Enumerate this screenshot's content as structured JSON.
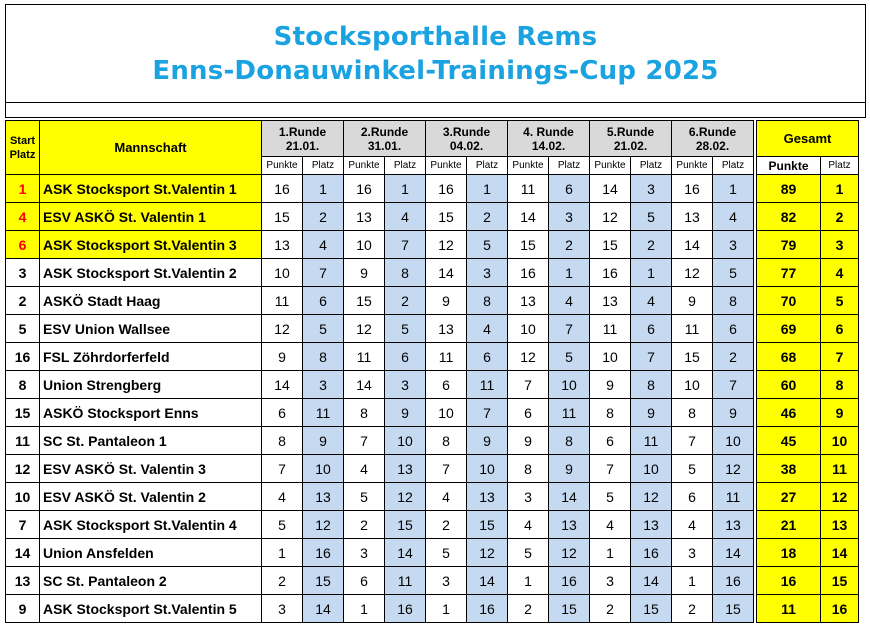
{
  "title": {
    "line1": "Stocksporthalle Rems",
    "line2": "Enns-Donauwinkel-Trainings-Cup  2025"
  },
  "headers": {
    "start_platz_1": "Start",
    "start_platz_2": "Platz",
    "mannschaft": "Mannschaft",
    "gesamt": "Gesamt",
    "punkte_short": "Punkte",
    "platz_short": "Platz",
    "punkte_bold": "Punkte"
  },
  "rounds": [
    {
      "label": "1.Runde",
      "date": "21.01."
    },
    {
      "label": "2.Runde",
      "date": "31.01."
    },
    {
      "label": "3.Runde",
      "date": "04.02."
    },
    {
      "label": "4. Runde",
      "date": "14.02."
    },
    {
      "label": "5.Runde",
      "date": "21.02."
    },
    {
      "label": "6.Runde",
      "date": "28.02."
    }
  ],
  "rows": [
    {
      "start": "1",
      "team": "ASK Stocksport St.Valentin 1",
      "highlight": true,
      "r": [
        [
          "16",
          "1"
        ],
        [
          "16",
          "1"
        ],
        [
          "16",
          "1"
        ],
        [
          "11",
          "6"
        ],
        [
          "14",
          "3"
        ],
        [
          "16",
          "1"
        ]
      ],
      "total": "89",
      "rank": "1"
    },
    {
      "start": "4",
      "team": "ESV ASKÖ St. Valentin 1",
      "highlight": true,
      "r": [
        [
          "15",
          "2"
        ],
        [
          "13",
          "4"
        ],
        [
          "15",
          "2"
        ],
        [
          "14",
          "3"
        ],
        [
          "12",
          "5"
        ],
        [
          "13",
          "4"
        ]
      ],
      "total": "82",
      "rank": "2"
    },
    {
      "start": "6",
      "team": "ASK Stocksport St.Valentin 3",
      "highlight": true,
      "r": [
        [
          "13",
          "4"
        ],
        [
          "10",
          "7"
        ],
        [
          "12",
          "5"
        ],
        [
          "15",
          "2"
        ],
        [
          "15",
          "2"
        ],
        [
          "14",
          "3"
        ]
      ],
      "total": "79",
      "rank": "3"
    },
    {
      "start": "3",
      "team": "ASK Stocksport St.Valentin 2",
      "highlight": false,
      "r": [
        [
          "10",
          "7"
        ],
        [
          "9",
          "8"
        ],
        [
          "14",
          "3"
        ],
        [
          "16",
          "1"
        ],
        [
          "16",
          "1"
        ],
        [
          "12",
          "5"
        ]
      ],
      "total": "77",
      "rank": "4"
    },
    {
      "start": "2",
      "team": "ASKÖ Stadt Haag",
      "highlight": false,
      "r": [
        [
          "11",
          "6"
        ],
        [
          "15",
          "2"
        ],
        [
          "9",
          "8"
        ],
        [
          "13",
          "4"
        ],
        [
          "13",
          "4"
        ],
        [
          "9",
          "8"
        ]
      ],
      "total": "70",
      "rank": "5"
    },
    {
      "start": "5",
      "team": "ESV Union Wallsee",
      "highlight": false,
      "r": [
        [
          "12",
          "5"
        ],
        [
          "12",
          "5"
        ],
        [
          "13",
          "4"
        ],
        [
          "10",
          "7"
        ],
        [
          "11",
          "6"
        ],
        [
          "11",
          "6"
        ]
      ],
      "total": "69",
      "rank": "6"
    },
    {
      "start": "16",
      "team": "FSL Zöhrdorferfeld",
      "highlight": false,
      "r": [
        [
          "9",
          "8"
        ],
        [
          "11",
          "6"
        ],
        [
          "11",
          "6"
        ],
        [
          "12",
          "5"
        ],
        [
          "10",
          "7"
        ],
        [
          "15",
          "2"
        ]
      ],
      "total": "68",
      "rank": "7"
    },
    {
      "start": "8",
      "team": "Union Strengberg",
      "highlight": false,
      "r": [
        [
          "14",
          "3"
        ],
        [
          "14",
          "3"
        ],
        [
          "6",
          "11"
        ],
        [
          "7",
          "10"
        ],
        [
          "9",
          "8"
        ],
        [
          "10",
          "7"
        ]
      ],
      "total": "60",
      "rank": "8"
    },
    {
      "start": "15",
      "team": "ASKÖ Stocksport Enns",
      "highlight": false,
      "r": [
        [
          "6",
          "11"
        ],
        [
          "8",
          "9"
        ],
        [
          "10",
          "7"
        ],
        [
          "6",
          "11"
        ],
        [
          "8",
          "9"
        ],
        [
          "8",
          "9"
        ]
      ],
      "total": "46",
      "rank": "9"
    },
    {
      "start": "11",
      "team": "SC St. Pantaleon 1",
      "highlight": false,
      "r": [
        [
          "8",
          "9"
        ],
        [
          "7",
          "10"
        ],
        [
          "8",
          "9"
        ],
        [
          "9",
          "8"
        ],
        [
          "6",
          "11"
        ],
        [
          "7",
          "10"
        ]
      ],
      "total": "45",
      "rank": "10"
    },
    {
      "start": "12",
      "team": "ESV ASKÖ St. Valentin 3",
      "highlight": false,
      "r": [
        [
          "7",
          "10"
        ],
        [
          "4",
          "13"
        ],
        [
          "7",
          "10"
        ],
        [
          "8",
          "9"
        ],
        [
          "7",
          "10"
        ],
        [
          "5",
          "12"
        ]
      ],
      "total": "38",
      "rank": "11"
    },
    {
      "start": "10",
      "team": "ESV ASKÖ St. Valentin 2",
      "highlight": false,
      "r": [
        [
          "4",
          "13"
        ],
        [
          "5",
          "12"
        ],
        [
          "4",
          "13"
        ],
        [
          "3",
          "14"
        ],
        [
          "5",
          "12"
        ],
        [
          "6",
          "11"
        ]
      ],
      "total": "27",
      "rank": "12"
    },
    {
      "start": "7",
      "team": "ASK Stocksport St.Valentin 4",
      "highlight": false,
      "r": [
        [
          "5",
          "12"
        ],
        [
          "2",
          "15"
        ],
        [
          "2",
          "15"
        ],
        [
          "4",
          "13"
        ],
        [
          "4",
          "13"
        ],
        [
          "4",
          "13"
        ]
      ],
      "total": "21",
      "rank": "13"
    },
    {
      "start": "14",
      "team": "Union Ansfelden",
      "highlight": false,
      "r": [
        [
          "1",
          "16"
        ],
        [
          "3",
          "14"
        ],
        [
          "5",
          "12"
        ],
        [
          "5",
          "12"
        ],
        [
          "1",
          "16"
        ],
        [
          "3",
          "14"
        ]
      ],
      "total": "18",
      "rank": "14"
    },
    {
      "start": "13",
      "team": "SC St. Pantaleon 2",
      "highlight": false,
      "r": [
        [
          "2",
          "15"
        ],
        [
          "6",
          "11"
        ],
        [
          "3",
          "14"
        ],
        [
          "1",
          "16"
        ],
        [
          "3",
          "14"
        ],
        [
          "1",
          "16"
        ]
      ],
      "total": "16",
      "rank": "15"
    },
    {
      "start": "9",
      "team": "ASK Stocksport St.Valentin 5",
      "highlight": false,
      "r": [
        [
          "3",
          "14"
        ],
        [
          "1",
          "16"
        ],
        [
          "1",
          "16"
        ],
        [
          "2",
          "15"
        ],
        [
          "2",
          "15"
        ],
        [
          "2",
          "15"
        ]
      ],
      "total": "11",
      "rank": "16"
    }
  ]
}
